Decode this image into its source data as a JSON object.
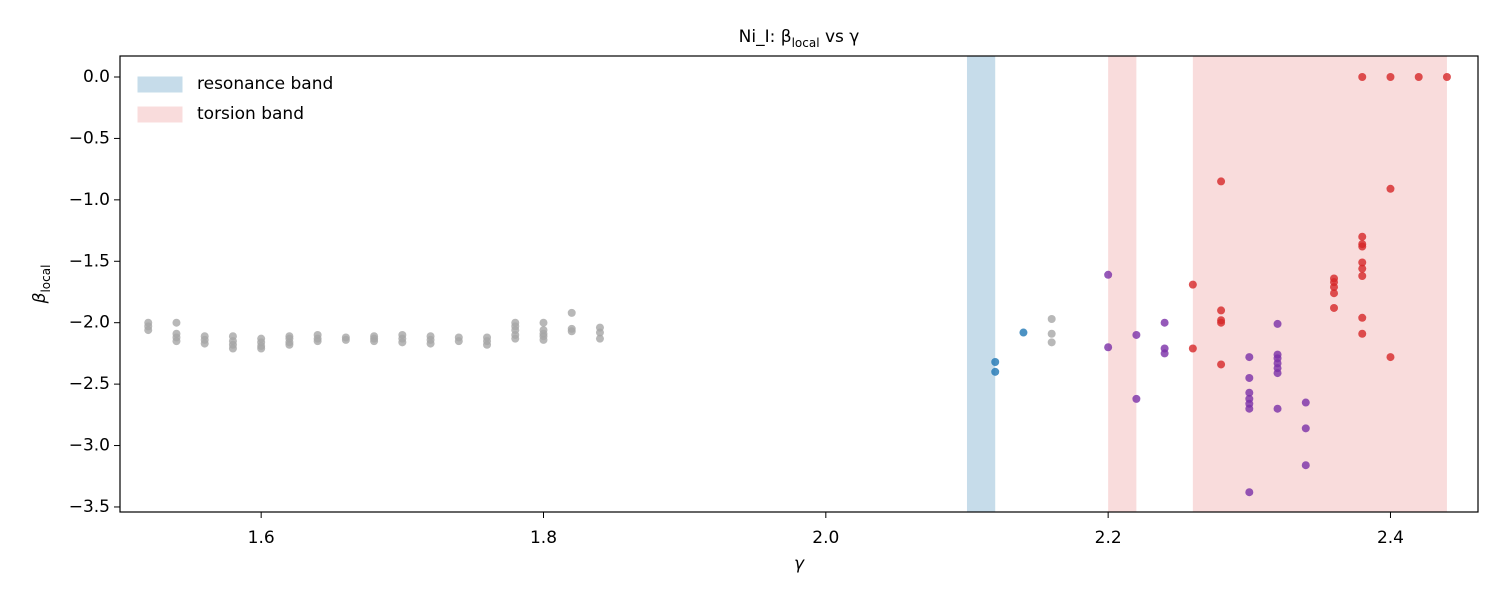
{
  "chart_data": {
    "type": "scatter",
    "title": {
      "text": "Ni_I: β",
      "subscript": "local",
      "suffix": " vs γ"
    },
    "x_label": "γ",
    "y_label": {
      "text": "β",
      "subscript": "local"
    },
    "xlim": [
      1.5,
      2.462
    ],
    "ylim": [
      -3.541,
      0.171
    ],
    "xticks": [
      1.6,
      1.8,
      {
        "value": 2.0,
        "label": "2.0"
      },
      2.2,
      2.4
    ],
    "yticks": [
      {
        "value": 0,
        "label": "0.0"
      },
      {
        "value": -0.5,
        "label": "−0.5"
      },
      {
        "value": -1,
        "label": "−1.0"
      },
      {
        "value": -1.5,
        "label": "−1.5"
      },
      {
        "value": -2,
        "label": "−2.0"
      },
      {
        "value": -2.5,
        "label": "−2.5"
      },
      {
        "value": -3,
        "label": "−3.0"
      },
      {
        "value": -3.5,
        "label": "−3.5"
      }
    ],
    "grid": false,
    "legend": "upper left",
    "bands": [
      {
        "name": "resonance band",
        "color": "#c6dcea",
        "spans": [
          [
            2.1,
            2.12
          ]
        ]
      },
      {
        "name": "torsion band",
        "color": "#f9dcdc",
        "spans": [
          [
            2.2,
            2.22
          ],
          [
            2.26,
            2.44
          ]
        ]
      }
    ],
    "series": [
      {
        "color": "#a6a6a6",
        "x": [
          1.52,
          1.52,
          1.52,
          1.54,
          1.54,
          1.54,
          1.54,
          1.56,
          1.56,
          1.56,
          1.58,
          1.58,
          1.58,
          1.58,
          1.6,
          1.6,
          1.6,
          1.6,
          1.62,
          1.62,
          1.62,
          1.62,
          1.64,
          1.64,
          1.64,
          1.66,
          1.66,
          1.68,
          1.68,
          1.68,
          1.7,
          1.7,
          1.7,
          1.72,
          1.72,
          1.72,
          1.74,
          1.74,
          1.76,
          1.76,
          1.76,
          1.78,
          1.78,
          1.78,
          1.78,
          1.78,
          1.8,
          1.8,
          1.8,
          1.8,
          1.8,
          1.82,
          1.82,
          1.82,
          1.84,
          1.84,
          1.84,
          2.16,
          2.16,
          2.16
        ],
        "values": [
          -2.0,
          -2.03,
          -2.06,
          -2.0,
          -2.09,
          -2.12,
          -2.15,
          -2.11,
          -2.14,
          -2.17,
          -2.11,
          -2.15,
          -2.18,
          -2.21,
          -2.13,
          -2.16,
          -2.19,
          -2.21,
          -2.11,
          -2.13,
          -2.16,
          -2.18,
          -2.1,
          -2.13,
          -2.15,
          -2.12,
          -2.14,
          -2.11,
          -2.13,
          -2.15,
          -2.1,
          -2.13,
          -2.16,
          -2.11,
          -2.14,
          -2.17,
          -2.12,
          -2.15,
          -2.12,
          -2.15,
          -2.18,
          -2.0,
          -2.03,
          -2.06,
          -2.1,
          -2.13,
          -2.0,
          -2.06,
          -2.09,
          -2.11,
          -2.14,
          -1.92,
          -2.05,
          -2.07,
          -2.04,
          -2.08,
          -2.13,
          -1.97,
          -2.09,
          -2.16
        ]
      },
      {
        "color": "#1f77b4",
        "x": [
          2.12,
          2.12,
          2.14
        ],
        "values": [
          -2.32,
          -2.4,
          -2.08
        ]
      },
      {
        "color": "#7b2fa8",
        "x": [
          2.2,
          2.2,
          2.22,
          2.22,
          2.24,
          2.24,
          2.24,
          2.3,
          2.3,
          2.3,
          2.3,
          2.3,
          2.3,
          2.3,
          2.32,
          2.32,
          2.32,
          2.32,
          2.32,
          2.32,
          2.32,
          2.34,
          2.34,
          2.34
        ],
        "values": [
          -1.61,
          -2.2,
          -2.1,
          -2.62,
          -2.0,
          -2.21,
          -2.25,
          -2.28,
          -2.45,
          -2.57,
          -2.62,
          -2.66,
          -2.7,
          -3.38,
          -2.01,
          -2.26,
          -2.29,
          -2.33,
          -2.37,
          -2.41,
          -2.7,
          -2.65,
          -2.86,
          -3.16
        ]
      },
      {
        "color": "#d62728",
        "x": [
          2.26,
          2.26,
          2.28,
          2.28,
          2.28,
          2.28,
          2.28,
          2.36,
          2.36,
          2.36,
          2.36,
          2.36,
          2.38,
          2.38,
          2.38,
          2.38,
          2.38,
          2.38,
          2.38,
          2.38,
          2.38,
          2.4,
          2.4,
          2.4,
          2.42,
          2.44
        ],
        "values": [
          -1.69,
          -2.21,
          -0.85,
          -1.9,
          -1.98,
          -2.0,
          -2.34,
          -1.64,
          -1.67,
          -1.71,
          -1.76,
          -1.88,
          0.0,
          -1.3,
          -1.36,
          -1.38,
          -1.51,
          -1.56,
          -1.62,
          -1.96,
          -2.09,
          0.0,
          -0.91,
          -2.28,
          0.0,
          0.0
        ]
      }
    ]
  }
}
